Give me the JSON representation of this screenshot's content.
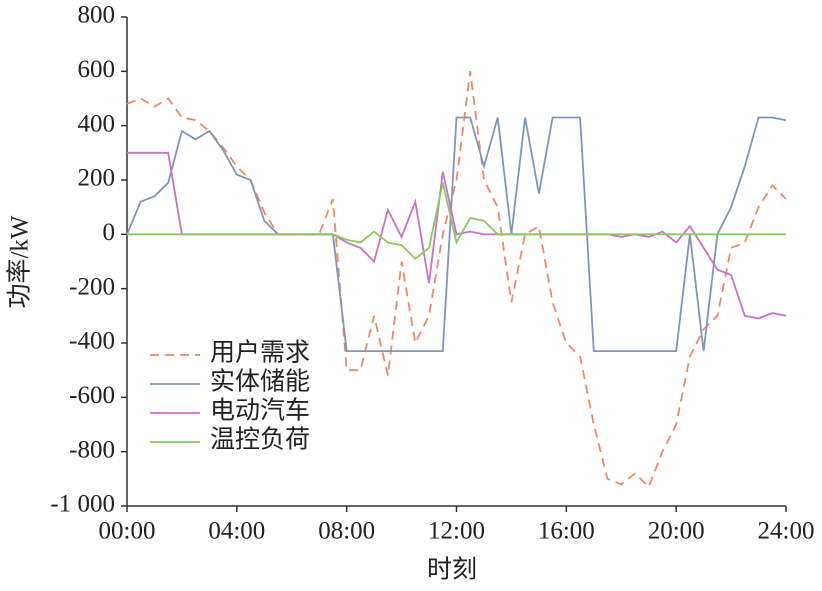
{
  "chart_data": {
    "type": "line",
    "x_label": "时刻",
    "y_label": "功率/kW",
    "x": [
      0,
      0.5,
      1,
      1.5,
      2,
      2.5,
      3,
      3.5,
      4,
      4.5,
      5,
      5.5,
      6,
      6.5,
      7,
      7.5,
      8,
      8.5,
      9,
      9.5,
      10,
      10.5,
      11,
      11.5,
      12,
      12.5,
      13,
      13.5,
      14,
      14.5,
      15,
      15.5,
      16,
      16.5,
      17,
      17.5,
      18,
      18.5,
      19,
      19.5,
      20,
      20.5,
      21,
      21.5,
      22,
      22.5,
      23,
      23.5,
      24
    ],
    "xlim": [
      0,
      24
    ],
    "xticks": [
      {
        "value": 0,
        "label": "00:00"
      },
      {
        "value": 4,
        "label": "04:00"
      },
      {
        "value": 8,
        "label": "08:00"
      },
      {
        "value": 12,
        "label": "12:00"
      },
      {
        "value": 16,
        "label": "16:00"
      },
      {
        "value": 20,
        "label": "20:00"
      },
      {
        "value": 24,
        "label": "24:00"
      }
    ],
    "ylim": [
      -1000,
      800
    ],
    "yticks": [
      {
        "value": -1000,
        "label": "-1 000"
      },
      -800,
      -600,
      -400,
      -200,
      0,
      200,
      400,
      600,
      800
    ],
    "legend": "lower-left",
    "series": [
      {
        "name": "用户需求",
        "color": "#ee8866",
        "dashed": true,
        "values": [
          480,
          500,
          470,
          500,
          430,
          420,
          380,
          320,
          250,
          200,
          80,
          0,
          0,
          0,
          0,
          130,
          -500,
          -500,
          -300,
          -520,
          -100,
          -400,
          -300,
          0,
          200,
          600,
          200,
          100,
          -250,
          0,
          30,
          -250,
          -400,
          -450,
          -700,
          -900,
          -920,
          -880,
          -930,
          -800,
          -700,
          -450,
          -350,
          -300,
          -50,
          -30,
          100,
          180,
          130
        ]
      },
      {
        "name": "实体储能",
        "color": "#7f96b8",
        "dashed": false,
        "values": [
          0,
          120,
          140,
          190,
          380,
          350,
          380,
          310,
          220,
          200,
          50,
          0,
          0,
          0,
          0,
          0,
          -430,
          -430,
          -430,
          -430,
          -430,
          -430,
          -430,
          -430,
          430,
          430,
          250,
          430,
          0,
          430,
          150,
          430,
          430,
          430,
          -430,
          -430,
          -430,
          -430,
          -430,
          -430,
          -430,
          0,
          -430,
          0,
          100,
          250,
          430,
          430,
          420
        ]
      },
      {
        "name": "电动汽车",
        "color": "#c873c3",
        "dashed": false,
        "values": [
          300,
          300,
          300,
          300,
          0,
          0,
          0,
          0,
          0,
          0,
          0,
          0,
          0,
          0,
          0,
          0,
          -30,
          -50,
          -100,
          90,
          -10,
          120,
          -180,
          230,
          0,
          10,
          0,
          0,
          0,
          0,
          0,
          0,
          0,
          0,
          0,
          0,
          -10,
          0,
          -10,
          10,
          -30,
          30,
          -50,
          -130,
          -150,
          -300,
          -310,
          -290,
          -300
        ]
      },
      {
        "name": "温控负荷",
        "color": "#8cc860",
        "dashed": false,
        "values": [
          0,
          0,
          0,
          0,
          0,
          0,
          0,
          0,
          0,
          0,
          0,
          0,
          0,
          0,
          0,
          0,
          -20,
          -30,
          10,
          -30,
          -40,
          -90,
          -50,
          190,
          -30,
          60,
          50,
          0,
          0,
          0,
          0,
          0,
          0,
          0,
          0,
          0,
          0,
          0,
          0,
          0,
          0,
          0,
          0,
          0,
          0,
          0,
          0,
          0,
          0
        ]
      }
    ]
  }
}
